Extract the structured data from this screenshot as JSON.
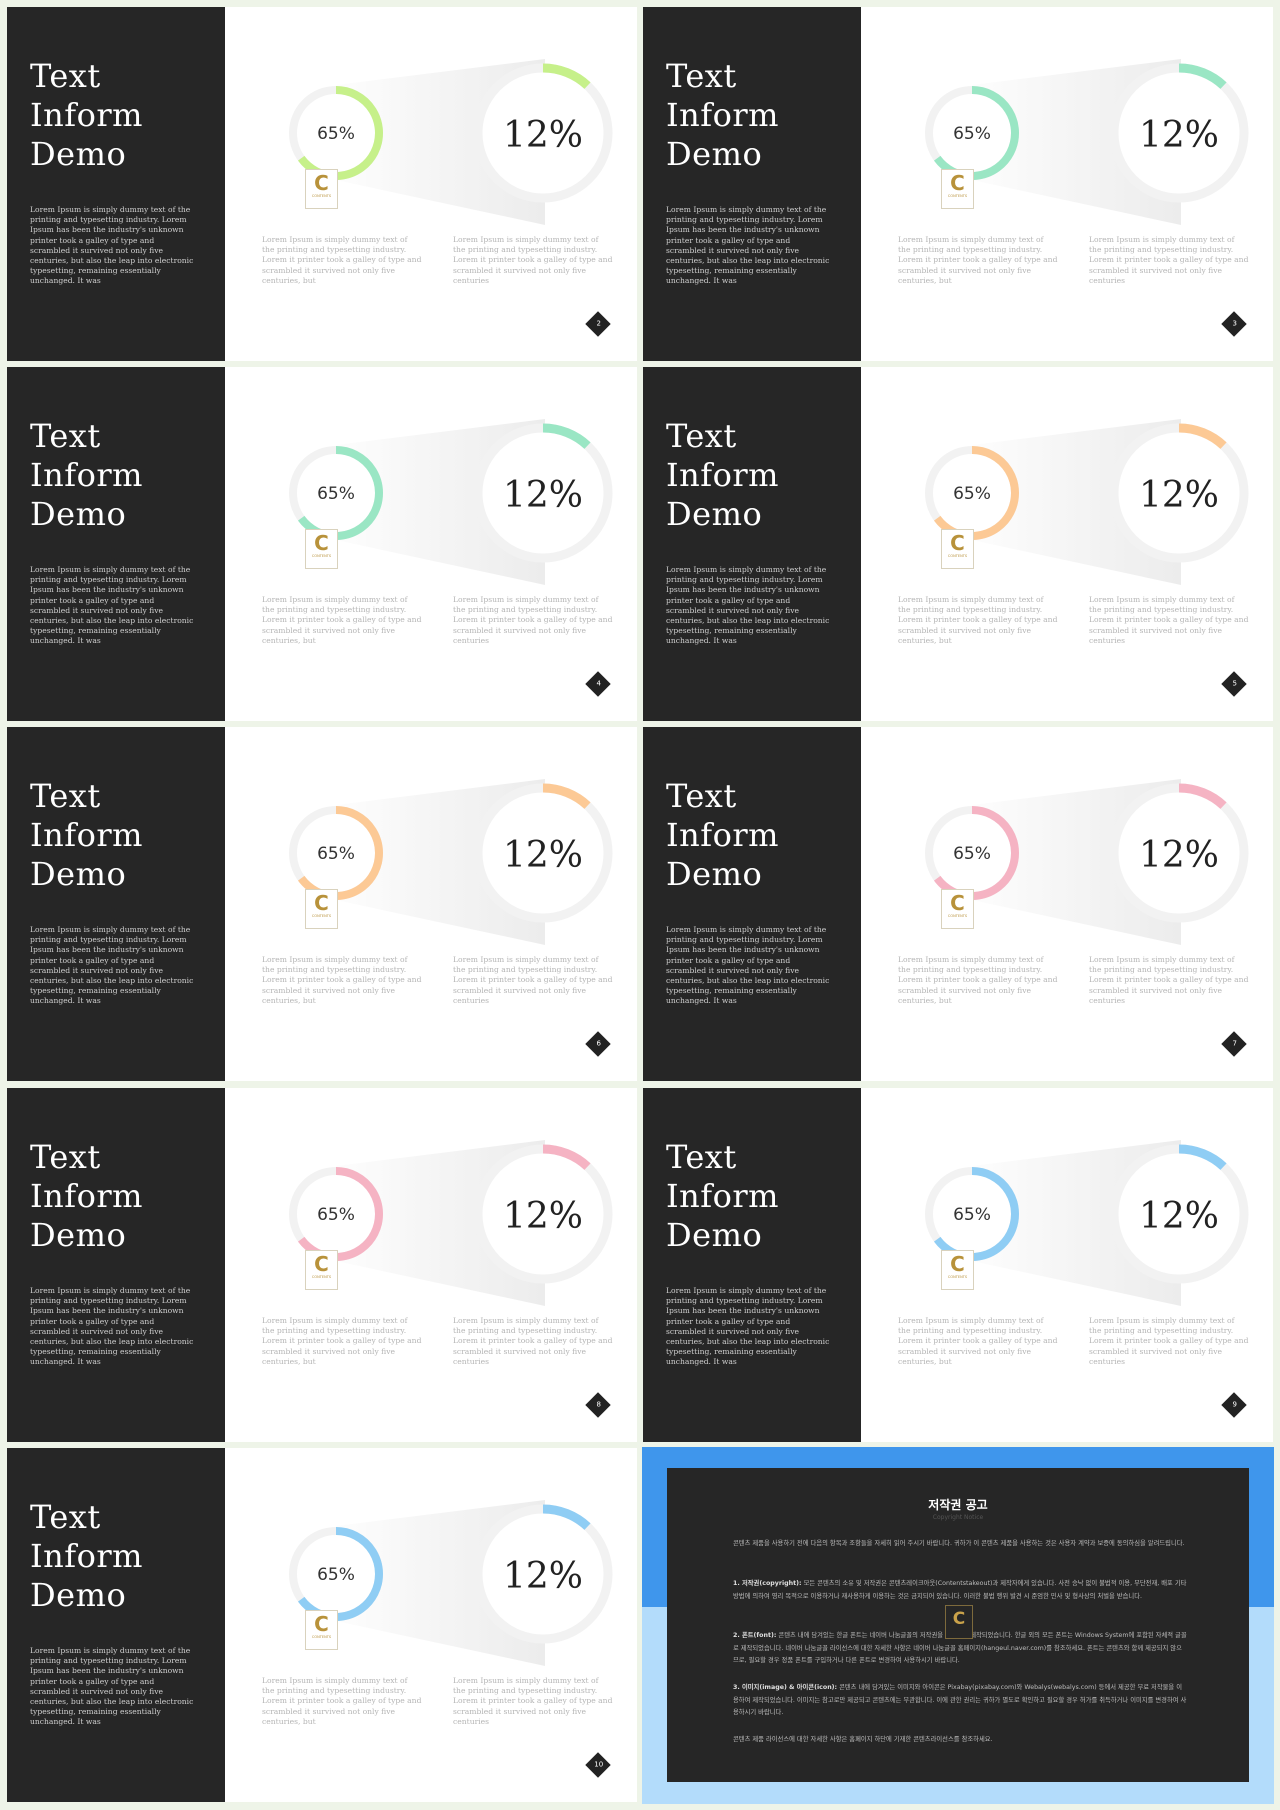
{
  "slide_template": {
    "title_lines": [
      "Text",
      "Inform",
      "Demo"
    ],
    "body_text": "Lorem Ipsum is simply dummy text of the printing and typesetting industry. Lorem Ipsum has been the industry's unknown printer took a galley of type and scrambled it survived not only five centuries, but also the leap into electronic typesetting, remaining essentially unchanged. It was",
    "small_value_label": "65%",
    "small_value": 65,
    "large_value_label": "12%",
    "large_value": 12,
    "column1_text": "Lorem Ipsum is simply dummy text of the printing and typesetting industry. Lorem it printer took a galley of type and scrambled it survived not only five centuries, but",
    "column2_text": "Lorem Ipsum is simply dummy text of the printing and typesetting industry. Lorem it printer took a galley of type and scrambled it survived not only five centuries",
    "logo_letter": "C",
    "logo_label": "CONTENTS"
  },
  "slides": [
    {
      "page": "2",
      "accent": "#c6f08a"
    },
    {
      "page": "3",
      "accent": "#9ae6c4"
    },
    {
      "page": "4",
      "accent": "#9ae6c4"
    },
    {
      "page": "5",
      "accent": "#fcc995"
    },
    {
      "page": "6",
      "accent": "#fcc995"
    },
    {
      "page": "7",
      "accent": "#f5b3c3"
    },
    {
      "page": "8",
      "accent": "#f5b3c3"
    },
    {
      "page": "9",
      "accent": "#8fcdf4"
    },
    {
      "page": "10",
      "accent": "#8fcdf4"
    }
  ],
  "notice": {
    "title": "저작권 공고",
    "subtitle": "Copyright Notice",
    "intro": "콘텐츠 제품을 사용하기 전에 다음의 항목과 조항들을 자세히 읽어 주시기 바랍니다. 귀하가 이 콘텐츠 제품을 사용하는 것은 사용자 계약과 보증에 동의하심을 알려드립니다.",
    "item1_head": "1. 저작권(copyright):",
    "item1_text": "모든 콘텐츠의 소유 및 저작권은 콘텐츠레이크아웃(Contentstakeout)과 제작자에게 있습니다. 사전 승낙 없이 불법적 이용, 무단전재, 배포 기타 방법에 의하여 영리 목적으로 이용하거나 재사용하게 이용하는 것은 금지되어 있습니다. 이러한 불법 행위 발견 시 준엄한 민사 및 형사상의 처벌을 받습니다.",
    "item2_head": "2. 폰트(font):",
    "item2_text": "콘텐츠 내에 담겨있는 한글 폰트는 네이버 나눔글꼴의 저작권을 준수하여 제작되었습니다. 한글 외의 모든 폰트는 Windows System에 포함된 자체적 글꼴로 제작되었습니다. 네이버 나눔글꼴 라이선스에 대한 자세한 사항은 네이버 나눔글꼴 홈페이지(hangeul.naver.com)를 참조하세요. 폰트는 콘텐츠와 함께 제공되지 않으므로, 필요할 경우 정품 폰트를 구입하거나 다른 폰트로 변경하여 사용하시기 바랍니다.",
    "item3_head": "3. 이미지(image) & 아이콘(icon):",
    "item3_text": "콘텐츠 내에 담겨있는 이미지와 아이콘은 Pixabay(pixabay.com)와 Webalys(webalys.com) 등에서 제공한 무료 저작물을 이용하여 제작되었습니다. 이미지는 참고로만 제공되고 콘텐츠에는 무관합니다. 이에 관한 권리는 귀하가 별도로 확인하고 필요할 경우 허가를 취득하거나 이미지를 변경하여 사용하시기 바랍니다.",
    "footer": "콘텐츠 제품 라이선스에 대한 자세한 사항은 홈페이지 하단에 기재한 콘텐츠라이선스를 참조하세요.",
    "logo_letter": "C"
  }
}
